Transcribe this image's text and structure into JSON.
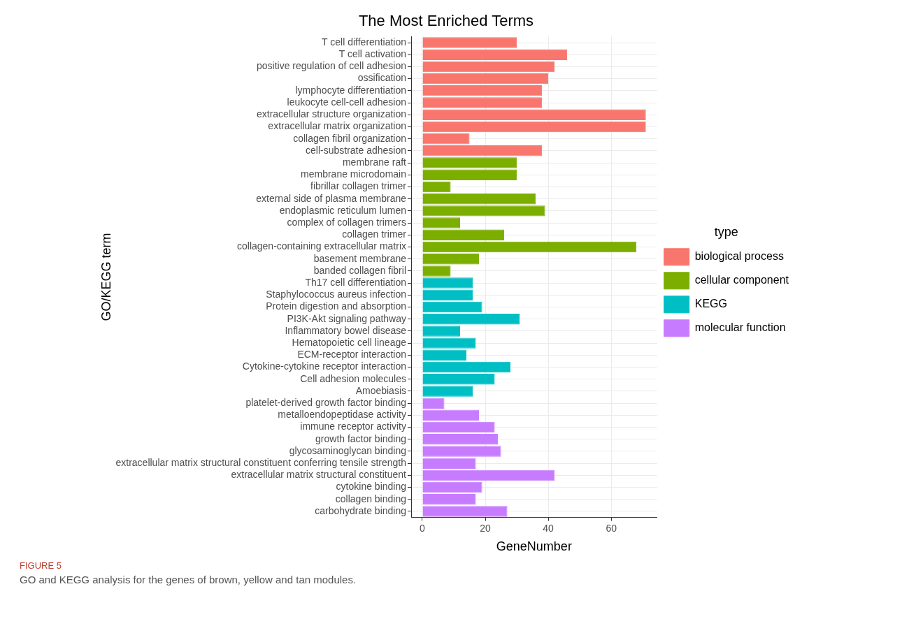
{
  "chart_data": {
    "type": "bar",
    "orientation": "horizontal",
    "title": "The Most Enriched Terms",
    "xlabel": "GeneNumber",
    "ylabel": "GO/KEGG term",
    "legend_title": "type",
    "legend": "right",
    "grid": true,
    "categories": [
      "T cell differentiation",
      "T cell activation",
      "positive regulation of cell adhesion",
      "ossification",
      "lymphocyte differentiation",
      "leukocyte cell-cell adhesion",
      "extracellular structure organization",
      "extracellular matrix organization",
      "collagen fibril organization",
      "cell-substrate adhesion",
      "membrane raft",
      "membrane microdomain",
      "fibrillar collagen trimer",
      "external side of plasma membrane",
      "endoplasmic reticulum lumen",
      "complex of collagen trimers",
      "collagen trimer",
      "collagen-containing extracellular matrix",
      "basement membrane",
      "banded collagen fibril",
      "Th17 cell differentiation",
      "Staphylococcus aureus infection",
      "Protein digestion and absorption",
      "PI3K-Akt signaling pathway",
      "Inflammatory bowel disease",
      "Hematopoietic cell lineage",
      "ECM-receptor interaction",
      "Cytokine-cytokine receptor interaction",
      "Cell adhesion molecules",
      "Amoebiasis",
      "platelet-derived growth factor binding",
      "metalloendopeptidase activity",
      "immune receptor activity",
      "growth factor binding",
      "glycosaminoglycan binding",
      "extracellular matrix structural constituent conferring tensile strength",
      "extracellular matrix structural constituent",
      "cytokine binding",
      "collagen binding",
      "carbohydrate binding"
    ],
    "series": [
      {
        "name": "biological process",
        "color": "#f8766d",
        "values": [
          30,
          46,
          42,
          40,
          38,
          38,
          71,
          71,
          15,
          38,
          null,
          null,
          null,
          null,
          null,
          null,
          null,
          null,
          null,
          null,
          null,
          null,
          null,
          null,
          null,
          null,
          null,
          null,
          null,
          null,
          null,
          null,
          null,
          null,
          null,
          null,
          null,
          null,
          null,
          null
        ]
      },
      {
        "name": "cellular component",
        "color": "#7cae00",
        "values": [
          null,
          null,
          null,
          null,
          null,
          null,
          null,
          null,
          null,
          null,
          30,
          30,
          9,
          36,
          39,
          12,
          26,
          68,
          18,
          9,
          null,
          null,
          null,
          null,
          null,
          null,
          null,
          null,
          null,
          null,
          null,
          null,
          null,
          null,
          null,
          null,
          null,
          null,
          null,
          null
        ]
      },
      {
        "name": "KEGG",
        "color": "#00bfc4",
        "values": [
          null,
          null,
          null,
          null,
          null,
          null,
          null,
          null,
          null,
          null,
          null,
          null,
          null,
          null,
          null,
          null,
          null,
          null,
          null,
          null,
          16,
          16,
          19,
          31,
          12,
          17,
          14,
          28,
          23,
          16,
          null,
          null,
          null,
          null,
          null,
          null,
          null,
          null,
          null,
          null
        ]
      },
      {
        "name": "molecular function",
        "color": "#c77cff",
        "values": [
          null,
          null,
          null,
          null,
          null,
          null,
          null,
          null,
          null,
          null,
          null,
          null,
          null,
          null,
          null,
          null,
          null,
          null,
          null,
          null,
          null,
          null,
          null,
          null,
          null,
          null,
          null,
          null,
          null,
          null,
          7,
          18,
          23,
          24,
          25,
          17,
          42,
          19,
          17,
          27
        ]
      }
    ],
    "xlim": [
      -3.55,
      74.55
    ],
    "xticks": [
      0,
      20,
      40,
      60
    ],
    "annotations": [
      "FIGURE 5",
      "GO and KEGG analysis for the genes of brown, yellow and tan modules."
    ]
  }
}
